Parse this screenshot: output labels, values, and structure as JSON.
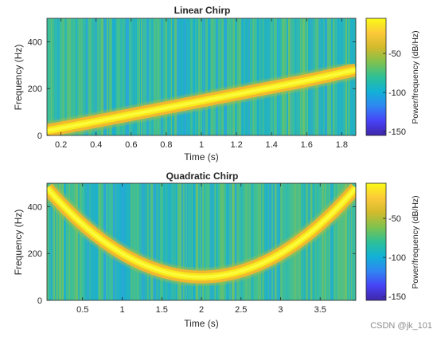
{
  "chart_data": [
    {
      "type": "heatmap",
      "title": "Linear Chirp",
      "xlabel": "Time (s)",
      "ylabel": "Frequency (Hz)",
      "xlim": [
        0.12,
        1.88
      ],
      "ylim": [
        0,
        500
      ],
      "xticks": [
        "0.2",
        "0.4",
        "0.6",
        "0.8",
        "1",
        "1.2",
        "1.4",
        "1.6",
        "1.8"
      ],
      "xtick_values": [
        0.2,
        0.4,
        0.6,
        0.8,
        1.0,
        1.2,
        1.4,
        1.6,
        1.8
      ],
      "yticks": [
        "0",
        "200",
        "400"
      ],
      "ytick_values": [
        0,
        200,
        400
      ],
      "ridge": {
        "description": "linear",
        "t": [
          0.12,
          0.4,
          0.8,
          1.2,
          1.6,
          1.88
        ],
        "f": [
          20,
          60,
          118,
          176,
          234,
          280
        ]
      },
      "colorbar": {
        "label": "Power/frequency (dB/Hz)",
        "ticks": [
          "-50",
          "-100",
          "-150"
        ],
        "tick_values": [
          -50,
          -100,
          -150
        ],
        "clim": [
          -155,
          -5
        ]
      }
    },
    {
      "type": "heatmap",
      "title": "Quadratic Chirp",
      "xlabel": "Time (s)",
      "ylabel": "Frequency (Hz)",
      "xlim": [
        0.05,
        3.95
      ],
      "ylim": [
        0,
        500
      ],
      "xticks": [
        "0.5",
        "1",
        "1.5",
        "2",
        "2.5",
        "3",
        "3.5"
      ],
      "xtick_values": [
        0.5,
        1.0,
        1.5,
        2.0,
        2.5,
        3.0,
        3.5
      ],
      "yticks": [
        "0",
        "200",
        "400"
      ],
      "ytick_values": [
        0,
        200,
        400
      ],
      "ridge": {
        "description": "quadratic",
        "t": [
          0.05,
          1.0,
          2.0,
          3.0,
          3.95
        ],
        "f": [
          480,
          198,
          100,
          198,
          480
        ]
      },
      "colorbar": {
        "label": "Power/frequency (dB/Hz)",
        "ticks": [
          "-50",
          "-100",
          "-150"
        ],
        "tick_values": [
          -50,
          -100,
          -150
        ],
        "clim": [
          -155,
          -5
        ]
      }
    }
  ],
  "watermark": "CSDN @jk_101",
  "colors": {
    "colormap": [
      "#3e26a8",
      "#4743f7",
      "#2f86f1",
      "#12b1d6",
      "#2ec096",
      "#7fc24e",
      "#d1ba2c",
      "#fcc93a",
      "#f9fb15"
    ],
    "axis": "#262626"
  }
}
